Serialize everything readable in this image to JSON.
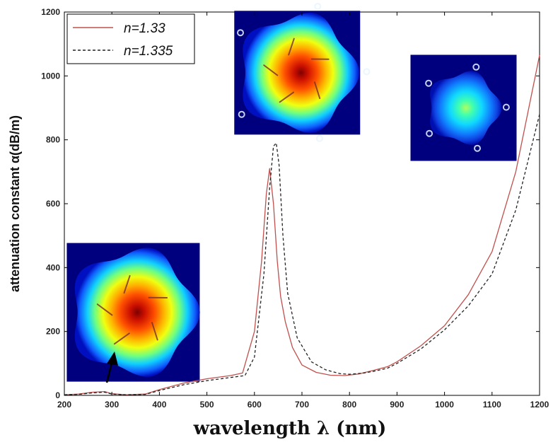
{
  "chart_data": {
    "type": "line",
    "xlabel": "wavelength λ (nm)",
    "ylabel": "attenuation constant α(dB/m)",
    "xlim": [
      200,
      1200
    ],
    "ylim": [
      0,
      1200
    ],
    "xticks": [
      200,
      300,
      400,
      500,
      600,
      700,
      800,
      900,
      1000,
      1100,
      1200
    ],
    "yticks": [
      0,
      200,
      400,
      600,
      800,
      1000,
      1200
    ],
    "grid": false,
    "legend_position": "top-left",
    "series": [
      {
        "name": "n=1.33",
        "color": "#c0504d",
        "dash": "solid",
        "x": [
          200,
          230,
          260,
          285,
          300,
          330,
          370,
          400,
          450,
          500,
          550,
          575,
          600,
          615,
          625,
          632,
          640,
          648,
          655,
          665,
          680,
          700,
          730,
          760,
          790,
          820,
          850,
          880,
          900,
          950,
          1000,
          1050,
          1100,
          1150,
          1200
        ],
        "y": [
          2,
          4,
          10,
          12,
          5,
          2,
          4,
          18,
          38,
          52,
          62,
          70,
          200,
          420,
          630,
          710,
          600,
          420,
          310,
          230,
          150,
          95,
          72,
          63,
          62,
          67,
          78,
          90,
          105,
          155,
          218,
          315,
          450,
          700,
          1065
        ]
      },
      {
        "name": "n=1.335",
        "color": "#222222",
        "dash": "dashed",
        "x": [
          200,
          230,
          260,
          285,
          300,
          330,
          370,
          400,
          450,
          500,
          550,
          580,
          600,
          620,
          632,
          640,
          646,
          652,
          660,
          670,
          690,
          720,
          750,
          780,
          800,
          830,
          850,
          880,
          900,
          950,
          1000,
          1050,
          1100,
          1150,
          1200
        ],
        "y": [
          2,
          3,
          8,
          10,
          4,
          2,
          3,
          15,
          33,
          46,
          56,
          62,
          120,
          380,
          650,
          780,
          790,
          720,
          500,
          320,
          180,
          105,
          80,
          68,
          66,
          70,
          75,
          85,
          100,
          145,
          205,
          280,
          380,
          580,
          880
        ]
      }
    ]
  },
  "insets": [
    {
      "name": "mode-field-inset-1",
      "anchor_x": 345,
      "anchor_y": 260,
      "peak": 1.0
    },
    {
      "name": "mode-field-inset-2",
      "anchor_x": 690,
      "anchor_y": 1010,
      "peak": 1.0
    },
    {
      "name": "mode-field-inset-3",
      "anchor_x": 1040,
      "anchor_y": 900,
      "peak": 0.45
    }
  ],
  "colors": {
    "field_background": "#00007f",
    "arrow": "#000000"
  }
}
